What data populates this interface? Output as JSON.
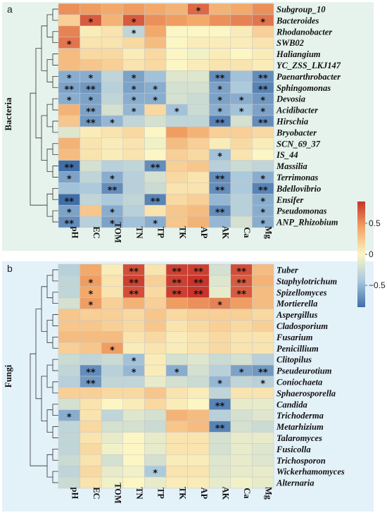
{
  "colors": {
    "panel_a_bg": "#e6f3ec",
    "panel_b_bg": "#e3f1f9",
    "scale_low": "#3f6ea8",
    "scale_mid": "#fbf6c4",
    "scale_high": "#c8332a",
    "cell_border": "#c8c8c8"
  },
  "colorbar": {
    "ticks": [
      0.5,
      0,
      -0.5
    ],
    "tick_labels": [
      "0.5",
      "0",
      "−0.5"
    ],
    "range": [
      -0.85,
      0.85
    ]
  },
  "chart_data": [
    {
      "type": "heatmap",
      "panel_label": "a",
      "group_label": "Bacteria",
      "columns": [
        "pH",
        "EC",
        "TOM",
        "TN",
        "TP",
        "TK",
        "AP",
        "AK",
        "Ca",
        "Mg"
      ],
      "rows": [
        "Subgroup_10",
        "Bacteroides",
        "Rhodanobacter",
        "SWB02",
        "Haliangium",
        "YC_ZSS_LKJ147",
        "Paenarthrobacter",
        "Sphingomonas",
        "Devosia",
        "Acidibacter",
        "Hirschia",
        "Bryobacter",
        "SCN_69_37",
        "IS_44",
        "Massilia",
        "Terrimonas",
        "Bdellovibrio",
        "Ensifer",
        "Pseudomonas",
        "ANP_Rhizobium"
      ],
      "values": [
        [
          0.5,
          0.45,
          0.4,
          0.45,
          0.4,
          0.35,
          0.65,
          0.35,
          0.4,
          0.5
        ],
        [
          0.2,
          0.7,
          0.35,
          0.7,
          0.5,
          0.45,
          0.4,
          0.5,
          0.55,
          0.6
        ],
        [
          0.55,
          0.05,
          0.1,
          -0.3,
          0.4,
          0.0,
          0.0,
          0.0,
          0.05,
          0.2
        ],
        [
          0.6,
          0.1,
          0.1,
          0.15,
          0.3,
          0.0,
          0.05,
          0.05,
          0.05,
          0.1
        ],
        [
          0.3,
          0.15,
          0.15,
          0.05,
          0.15,
          0.0,
          -0.05,
          0.05,
          0.0,
          0.05
        ],
        [
          0.3,
          0.25,
          0.2,
          0.1,
          0.15,
          0.0,
          0.05,
          0.1,
          0.1,
          0.05
        ],
        [
          -0.55,
          -0.55,
          -0.3,
          -0.6,
          -0.45,
          -0.15,
          -0.15,
          -0.7,
          -0.45,
          -0.7
        ],
        [
          -0.6,
          -0.65,
          -0.35,
          -0.6,
          -0.55,
          -0.2,
          -0.2,
          -0.6,
          -0.4,
          -0.75
        ],
        [
          -0.55,
          -0.6,
          -0.3,
          -0.55,
          -0.55,
          -0.2,
          -0.25,
          -0.6,
          -0.55,
          -0.65
        ],
        [
          0.35,
          -0.6,
          -0.2,
          -0.5,
          0.15,
          -0.45,
          -0.25,
          -0.55,
          -0.45,
          -0.6
        ],
        [
          0.25,
          -0.65,
          -0.5,
          -0.3,
          -0.2,
          -0.3,
          -0.3,
          -0.75,
          -0.2,
          -0.7
        ],
        [
          -0.15,
          0.05,
          0.1,
          0.15,
          0.0,
          0.45,
          0.35,
          0.2,
          0.2,
          0.15
        ],
        [
          0.35,
          0.1,
          0.05,
          0.1,
          -0.05,
          0.3,
          0.2,
          0.05,
          0.15,
          0.05
        ],
        [
          0.3,
          0.1,
          0.05,
          0.1,
          0.0,
          0.2,
          0.15,
          -0.45,
          0.1,
          0.0
        ],
        [
          -0.85,
          -0.2,
          -0.35,
          -0.3,
          -0.7,
          0.2,
          0.25,
          -0.35,
          -0.25,
          -0.3
        ],
        [
          -0.6,
          -0.3,
          -0.55,
          -0.35,
          -0.2,
          0.15,
          0.1,
          -0.7,
          -0.4,
          -0.55
        ],
        [
          -0.45,
          -0.4,
          -0.7,
          -0.35,
          -0.25,
          0.1,
          0.1,
          -0.7,
          -0.4,
          -0.75
        ],
        [
          -0.85,
          -0.3,
          -0.4,
          -0.3,
          -0.75,
          0.15,
          0.2,
          -0.5,
          -0.35,
          -0.55
        ],
        [
          -0.6,
          0.25,
          -0.55,
          -0.35,
          0.1,
          0.25,
          0.3,
          -0.7,
          -0.35,
          -0.55
        ],
        [
          -0.7,
          -0.35,
          -0.6,
          -0.45,
          -0.55,
          0.25,
          0.35,
          -0.5,
          -0.2,
          -0.55
        ]
      ],
      "stars": [
        [
          "",
          "",
          "",
          "",
          "",
          "",
          "*",
          "",
          "",
          ""
        ],
        [
          "",
          "*",
          "",
          "*",
          "",
          "",
          "",
          "",
          "",
          "*"
        ],
        [
          "",
          "",
          "",
          "*",
          "",
          "",
          "",
          "",
          "",
          ""
        ],
        [
          "*",
          "",
          "",
          "",
          "",
          "",
          "",
          "",
          "",
          ""
        ],
        [
          "",
          "",
          "",
          "",
          "",
          "",
          "",
          "",
          "",
          ""
        ],
        [
          "",
          "",
          "",
          "",
          "",
          "",
          "",
          "",
          "",
          ""
        ],
        [
          "*",
          "*",
          "",
          "*",
          "",
          "",
          "",
          "**",
          "",
          "**"
        ],
        [
          "**",
          "**",
          "",
          "*",
          "*",
          "",
          "",
          "*",
          "",
          "**"
        ],
        [
          "*",
          "*",
          "",
          "*",
          "*",
          "",
          "",
          "*",
          "*",
          "*"
        ],
        [
          "",
          "**",
          "",
          "*",
          "",
          "*",
          "",
          "*",
          "*",
          "*"
        ],
        [
          "",
          "**",
          "*",
          "",
          "",
          "",
          "",
          "**",
          "",
          "**"
        ],
        [
          "",
          "",
          "",
          "",
          "",
          "",
          "",
          "",
          "",
          ""
        ],
        [
          "",
          "",
          "",
          "",
          "",
          "",
          "",
          "",
          "",
          ""
        ],
        [
          "",
          "",
          "",
          "",
          "",
          "",
          "",
          "*",
          "",
          ""
        ],
        [
          "**",
          "",
          "",
          "",
          "**",
          "",
          "",
          "",
          "",
          ""
        ],
        [
          "*",
          "",
          "*",
          "",
          "",
          "",
          "",
          "**",
          "",
          "*"
        ],
        [
          "",
          "",
          "**",
          "",
          "",
          "",
          "",
          "**",
          "",
          "**"
        ],
        [
          "**",
          "",
          "",
          "",
          "**",
          "",
          "",
          "",
          "",
          "*"
        ],
        [
          "*",
          "",
          "*",
          "",
          "",
          "",
          "",
          "**",
          "",
          "*"
        ],
        [
          "**",
          "",
          "*",
          "",
          "*",
          "",
          "",
          "",
          "",
          "*"
        ]
      ]
    },
    {
      "type": "heatmap",
      "panel_label": "b",
      "group_label": "Fungi",
      "columns": [
        "pH",
        "EC",
        "TOM",
        "TN",
        "TP",
        "TK",
        "AP",
        "AK",
        "Ca",
        "Mg"
      ],
      "rows": [
        "Tuber",
        "Staphylotrichum",
        "Spizellomyces",
        "Mortierella",
        "Aspergillus",
        "Cladosporium",
        "Fusarium",
        "Penicillium",
        "Clitopilus",
        "Pseudeurotium",
        "Coniochaeta",
        "Sphaerosporella",
        "Candida",
        "Trichoderma",
        "Metarhizium",
        "Talaromyces",
        "Fusicolla",
        "Trichosporon",
        "Wickerhamomyces",
        "Alternaria"
      ],
      "values": [
        [
          -0.35,
          0.4,
          0.05,
          0.75,
          0.1,
          0.8,
          0.8,
          -0.2,
          0.75,
          0.3
        ],
        [
          -0.3,
          0.45,
          0.1,
          0.8,
          0.2,
          0.8,
          0.85,
          -0.15,
          0.7,
          0.35
        ],
        [
          -0.3,
          0.4,
          0.1,
          0.75,
          0.15,
          0.8,
          0.85,
          -0.1,
          0.7,
          0.3
        ],
        [
          -0.2,
          0.45,
          0.2,
          0.35,
          0.2,
          0.45,
          0.5,
          0.55,
          0.45,
          0.3
        ],
        [
          0.25,
          0.2,
          0.2,
          0.15,
          0.25,
          0.15,
          0.2,
          0.2,
          0.2,
          0.15
        ],
        [
          0.25,
          0.25,
          0.2,
          0.15,
          0.25,
          0.1,
          0.15,
          0.2,
          0.15,
          0.2
        ],
        [
          0.3,
          0.3,
          0.3,
          0.1,
          0.15,
          0.05,
          0.1,
          0.15,
          0.1,
          0.1
        ],
        [
          0.2,
          0.25,
          0.45,
          0.05,
          0.1,
          0.05,
          0.1,
          0.15,
          0.1,
          0.1
        ],
        [
          -0.25,
          -0.3,
          -0.25,
          -0.45,
          0.05,
          -0.2,
          -0.15,
          -0.25,
          -0.2,
          -0.35
        ],
        [
          -0.3,
          -0.7,
          -0.35,
          -0.5,
          0.05,
          -0.55,
          -0.2,
          -0.35,
          -0.6,
          -0.65
        ],
        [
          -0.35,
          -0.65,
          -0.3,
          -0.3,
          -0.1,
          -0.2,
          -0.25,
          -0.5,
          -0.3,
          -0.35
        ],
        [
          0.2,
          0.2,
          0.15,
          0.15,
          0.25,
          0.1,
          0.05,
          -0.3,
          0.1,
          0.1
        ],
        [
          -0.2,
          0.1,
          0.0,
          0.05,
          0.15,
          0.05,
          0.0,
          -0.75,
          -0.1,
          -0.1
        ],
        [
          -0.55,
          0.1,
          -0.3,
          -0.15,
          -0.2,
          0.35,
          0.3,
          -0.35,
          -0.2,
          -0.15
        ],
        [
          -0.3,
          0.15,
          -0.2,
          -0.2,
          -0.25,
          0.25,
          0.3,
          -0.75,
          -0.2,
          -0.25
        ],
        [
          -0.3,
          0.1,
          -0.1,
          0.0,
          -0.1,
          0.1,
          0.1,
          -0.2,
          -0.1,
          -0.1
        ],
        [
          -0.3,
          0.15,
          -0.05,
          0.0,
          -0.1,
          0.1,
          0.1,
          -0.2,
          -0.1,
          -0.15
        ],
        [
          -0.25,
          0.1,
          -0.2,
          0.0,
          -0.2,
          0.05,
          0.05,
          -0.15,
          -0.1,
          -0.15
        ],
        [
          -0.3,
          0.15,
          -0.1,
          -0.05,
          -0.4,
          0.1,
          0.1,
          -0.15,
          -0.1,
          -0.1
        ],
        [
          -0.25,
          0.1,
          -0.05,
          0.0,
          -0.1,
          0.05,
          0.05,
          -0.1,
          -0.05,
          -0.1
        ]
      ],
      "stars": [
        [
          "",
          "",
          "",
          "**",
          "",
          "**",
          "**",
          "",
          "**",
          ""
        ],
        [
          "",
          "*",
          "",
          "**",
          "",
          "**",
          "**",
          "",
          "**",
          ""
        ],
        [
          "",
          "*",
          "",
          "**",
          "",
          "**",
          "**",
          "",
          "**",
          ""
        ],
        [
          "",
          "*",
          "",
          "",
          "",
          "",
          "",
          "*",
          "",
          ""
        ],
        [
          "",
          "",
          "",
          "",
          "",
          "",
          "",
          "",
          "",
          ""
        ],
        [
          "",
          "",
          "",
          "",
          "",
          "",
          "",
          "",
          "",
          ""
        ],
        [
          "",
          "",
          "",
          "",
          "",
          "",
          "",
          "",
          "",
          ""
        ],
        [
          "",
          "",
          "*",
          "",
          "",
          "",
          "",
          "",
          "",
          ""
        ],
        [
          "",
          "",
          "",
          "*",
          "",
          "",
          "",
          "",
          "",
          ""
        ],
        [
          "",
          "**",
          "",
          "*",
          "",
          "*",
          "",
          "",
          "*",
          "**"
        ],
        [
          "",
          "**",
          "",
          "",
          "",
          "",
          "",
          "*",
          "",
          "*"
        ],
        [
          "",
          "",
          "",
          "",
          "",
          "",
          "",
          "",
          "",
          ""
        ],
        [
          "",
          "",
          "",
          "",
          "",
          "",
          "",
          "**",
          "",
          ""
        ],
        [
          "*",
          "",
          "",
          "",
          "",
          "",
          "",
          "",
          "",
          ""
        ],
        [
          "",
          "",
          "",
          "",
          "",
          "",
          "",
          "**",
          "",
          ""
        ],
        [
          "",
          "",
          "",
          "",
          "",
          "",
          "",
          "",
          "",
          ""
        ],
        [
          "",
          "",
          "",
          "",
          "",
          "",
          "",
          "",
          "",
          ""
        ],
        [
          "",
          "",
          "",
          "",
          "",
          "",
          "",
          "",
          "",
          ""
        ],
        [
          "",
          "",
          "",
          "",
          "*",
          "",
          "",
          "",
          "",
          ""
        ],
        [
          "",
          "",
          "",
          "",
          "",
          "",
          "",
          "",
          "",
          ""
        ]
      ]
    }
  ]
}
